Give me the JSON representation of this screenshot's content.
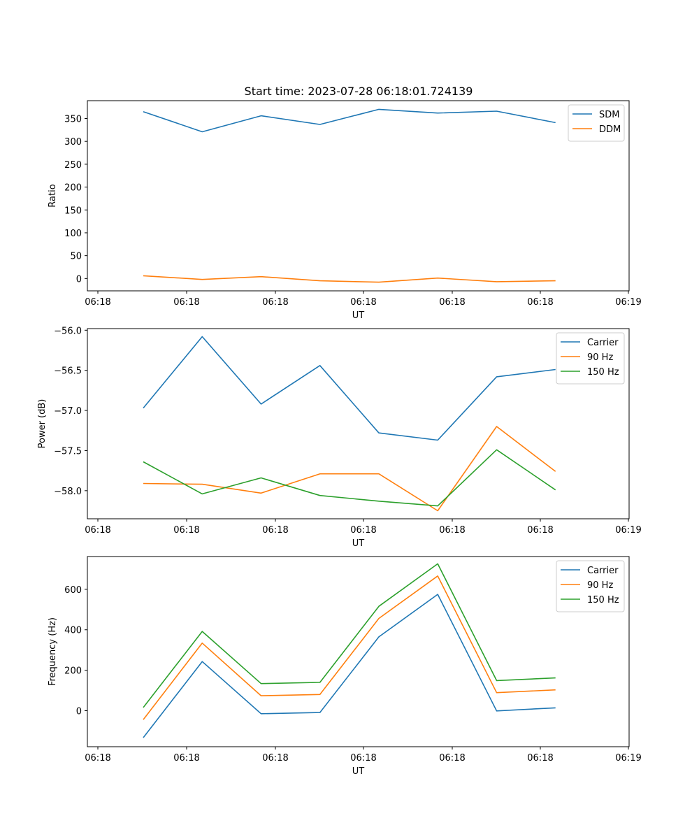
{
  "title": "Start time: 2023-07-28 06:18:01.724139",
  "chart_data": [
    {
      "type": "line",
      "title": "Start time: 2023-07-28 06:18:01.724139",
      "xlabel": "UT",
      "ylabel": "Ratio",
      "x_tick_labels": [
        "06:18",
        "06:18",
        "06:18",
        "06:18",
        "06:18",
        "06:18",
        "06:19"
      ],
      "y_ticks": [
        0,
        50,
        100,
        150,
        200,
        250,
        300,
        350
      ],
      "ylim": [
        -27,
        389
      ],
      "x": [
        1,
        2,
        3,
        4,
        5,
        6,
        7,
        8
      ],
      "xlim": [
        0.05,
        9.25
      ],
      "series": [
        {
          "name": "SDM",
          "color": "#1f77b4",
          "values": [
            365,
            321,
            356,
            337,
            370,
            362,
            366,
            341
          ]
        },
        {
          "name": "DDM",
          "color": "#ff7f0e",
          "values": [
            6,
            -2,
            4,
            -5,
            -8,
            1,
            -7,
            -5
          ]
        }
      ],
      "legend": "top-right"
    },
    {
      "type": "line",
      "title": "",
      "xlabel": "UT",
      "ylabel": "Power (dB)",
      "x_tick_labels": [
        "06:18",
        "06:18",
        "06:18",
        "06:18",
        "06:18",
        "06:18",
        "06:19"
      ],
      "y_ticks": [
        -58.0,
        -57.5,
        -57.0,
        -56.5,
        -56.0
      ],
      "y_tick_labels": [
        "−58.0",
        "−57.5",
        "−57.0",
        "−56.5",
        "−56.0"
      ],
      "ylim": [
        -58.35,
        -55.98
      ],
      "x": [
        1,
        2,
        3,
        4,
        5,
        6,
        7,
        8
      ],
      "xlim": [
        0.05,
        9.25
      ],
      "series": [
        {
          "name": "Carrier",
          "color": "#1f77b4",
          "values": [
            -56.97,
            -56.08,
            -56.92,
            -56.44,
            -57.28,
            -57.37,
            -56.58,
            -56.49
          ]
        },
        {
          "name": "90 Hz",
          "color": "#ff7f0e",
          "values": [
            -57.91,
            -57.92,
            -58.03,
            -57.79,
            -57.79,
            -58.25,
            -57.2,
            -57.76
          ]
        },
        {
          "name": "150 Hz",
          "color": "#2ca02c",
          "values": [
            -57.64,
            -58.04,
            -57.84,
            -58.06,
            -58.13,
            -58.19,
            -57.49,
            -57.99
          ]
        }
      ],
      "legend": "top-right"
    },
    {
      "type": "line",
      "title": "",
      "xlabel": "UT",
      "ylabel": "Frequency (Hz)",
      "x_tick_labels": [
        "06:18",
        "06:18",
        "06:18",
        "06:18",
        "06:18",
        "06:18",
        "06:19"
      ],
      "y_ticks": [
        0,
        200,
        400,
        600
      ],
      "ylim": [
        -178,
        762
      ],
      "x": [
        1,
        2,
        3,
        4,
        5,
        6,
        7,
        8
      ],
      "xlim": [
        0.05,
        9.25
      ],
      "series": [
        {
          "name": "Carrier",
          "color": "#1f77b4",
          "values": [
            -133,
            243,
            -15,
            -9,
            365,
            575,
            -1,
            14
          ]
        },
        {
          "name": "90 Hz",
          "color": "#ff7f0e",
          "values": [
            -44,
            334,
            74,
            80,
            456,
            666,
            89,
            103
          ]
        },
        {
          "name": "150 Hz",
          "color": "#2ca02c",
          "values": [
            16,
            392,
            134,
            140,
            516,
            726,
            149,
            162
          ]
        }
      ],
      "legend": "top-right"
    }
  ]
}
